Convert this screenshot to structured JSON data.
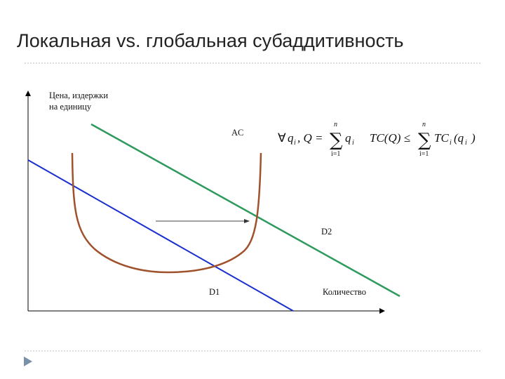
{
  "header": {
    "title": "Локальная vs. глобальная субаддитивность"
  },
  "diagram": {
    "y_axis_label": [
      "Цена, издержки",
      "на единицу"
    ],
    "x_axis_label": "Количество",
    "curves": {
      "ac": "AC",
      "d1": "D1",
      "d2": "D2"
    },
    "formula": {
      "left": {
        "forall": "∀",
        "q": "q",
        "q_sub": "i",
        "rest": ", Q =",
        "sum": "∑",
        "sum_top": "n",
        "sum_bottom": "i=1",
        "term": "q",
        "term_sub": "i"
      },
      "right": {
        "lhs": "TC(Q) ≤",
        "sum": "∑",
        "sum_top": "n",
        "sum_bottom": "i=1",
        "tc": "TC",
        "tc_sub": "i",
        "open": "(q",
        "q_sub": "i",
        "close": ")"
      }
    }
  }
}
